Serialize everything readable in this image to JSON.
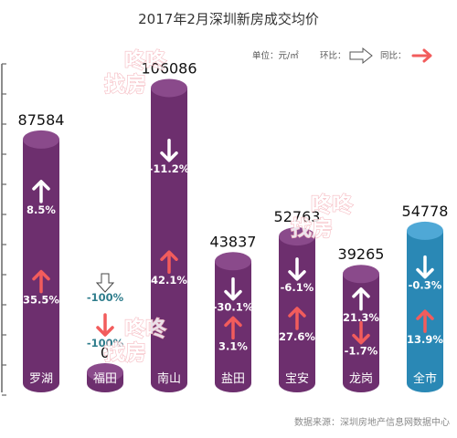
{
  "chart_data": {
    "type": "bar",
    "title": "2017年2月深圳新房成交均价",
    "legend": {
      "unit": "单位：元/㎡",
      "mom_label": "环比：",
      "yoy_label": "同比："
    },
    "source": "数据来源：深圳房地产信息网数据中心",
    "watermark": "咚咚找房",
    "categories": [
      "罗湖",
      "福田",
      "南山",
      "盐田",
      "宝安",
      "龙岗",
      "全市"
    ],
    "values": [
      87584,
      0,
      106086,
      43837,
      52763,
      39265,
      54778
    ],
    "value_labels": [
      "87584",
      "0",
      "106086",
      "43837",
      "52763",
      "39265",
      "54778"
    ],
    "series": [
      {
        "name": "环比",
        "values": [
          8.5,
          -100,
          -11.2,
          -30.1,
          -6.1,
          21.3,
          -0.3
        ],
        "labels": [
          "8.5%",
          "-100%",
          "-11.2%",
          "-30.1%",
          "-6.1%",
          "21.3%",
          "-0.3%"
        ]
      },
      {
        "name": "同比",
        "values": [
          35.5,
          -100,
          42.1,
          3.1,
          27.6,
          -1.7,
          13.9
        ],
        "labels": [
          "35.5%",
          "-100%",
          "42.1%",
          "3.1%",
          "27.6%",
          "-1.7%",
          "13.9%"
        ]
      }
    ],
    "colors": {
      "bar": "#6d2f6e",
      "bar_top": "#8a4a8b",
      "bar_city": "#2a88b5",
      "bar_city_top": "#4fa8d6",
      "arrow_mom": "#ffffff",
      "arrow_yoy": "#f25c5c",
      "label_teal": "#2f7d8c",
      "axis": "#666666",
      "watermark": "#f4aeb6"
    }
  }
}
